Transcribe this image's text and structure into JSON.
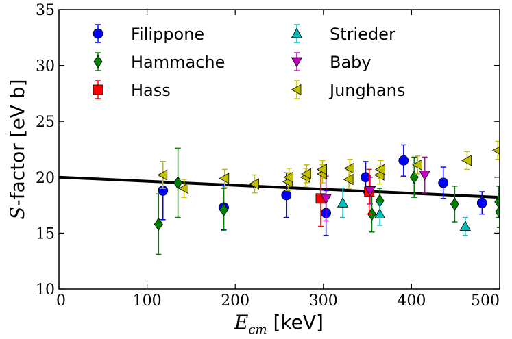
{
  "chart_data": {
    "type": "scatter",
    "xlabel": {
      "symbol": "E",
      "subscript": "cm",
      "unit": " [keV]"
    },
    "ylabel": {
      "symbol": "S",
      "rest": "-factor [eV b]"
    },
    "xlim": [
      0,
      500
    ],
    "ylim": [
      10,
      35
    ],
    "x_ticks": [
      0,
      100,
      200,
      300,
      400,
      500
    ],
    "y_ticks": [
      10,
      15,
      20,
      25,
      30,
      35
    ],
    "grid": false,
    "legend_placement": "top-left, two columns",
    "fit_line": {
      "x": [
        0,
        500
      ],
      "y": [
        20.0,
        18.2
      ],
      "color": "#000000"
    },
    "series": [
      {
        "name": "Filippone",
        "marker": "circle",
        "color": "#0000ff",
        "points": [
          {
            "x": 118,
            "y": 18.8,
            "err": 2.6
          },
          {
            "x": 187,
            "y": 17.3,
            "err": 2.0
          },
          {
            "x": 258,
            "y": 18.4,
            "err": 2.0
          },
          {
            "x": 303,
            "y": 16.8,
            "err": 2.0
          },
          {
            "x": 348,
            "y": 20.0,
            "err": 1.4
          },
          {
            "x": 391,
            "y": 21.5,
            "err": 1.4
          },
          {
            "x": 436,
            "y": 19.5,
            "err": 1.4
          },
          {
            "x": 480,
            "y": 17.7,
            "err": 1.0
          }
        ]
      },
      {
        "name": "Hammache",
        "marker": "diamond",
        "color": "#008000",
        "points": [
          {
            "x": 113,
            "y": 15.8,
            "err": 2.7
          },
          {
            "x": 135,
            "y": 19.5,
            "err": 3.1
          },
          {
            "x": 187,
            "y": 17.1,
            "err": 1.9
          },
          {
            "x": 355,
            "y": 16.7,
            "err": 1.6
          },
          {
            "x": 364,
            "y": 17.9,
            "err": 1.1
          },
          {
            "x": 403,
            "y": 20.0,
            "err": 1.8
          },
          {
            "x": 449,
            "y": 17.6,
            "err": 1.6
          },
          {
            "x": 499,
            "y": 17.8,
            "err": 1.4
          },
          {
            "x": 500,
            "y": 16.9,
            "err": 1.4
          }
        ]
      },
      {
        "name": "Hass",
        "marker": "square",
        "color": "#ff0000",
        "points": [
          {
            "x": 297,
            "y": 18.1,
            "err": 2.5
          },
          {
            "x": 352,
            "y": 18.7,
            "err": 2.0
          }
        ]
      },
      {
        "name": "Strieder",
        "marker": "triangle-up",
        "color": "#00bfbf",
        "points": [
          {
            "x": 322,
            "y": 17.7,
            "err": 1.3
          },
          {
            "x": 364,
            "y": 16.7,
            "err": 1.0
          },
          {
            "x": 461,
            "y": 15.6,
            "err": 0.8
          }
        ]
      },
      {
        "name": "Baby",
        "marker": "triangle-down",
        "color": "#bf00bf",
        "points": [
          {
            "x": 303,
            "y": 18.1,
            "err": 2.0
          },
          {
            "x": 353,
            "y": 18.8,
            "err": 1.2
          },
          {
            "x": 415,
            "y": 20.2,
            "err": 1.6
          }
        ]
      },
      {
        "name": "Junghans",
        "marker": "triangle-left",
        "color": "#bfbf00",
        "points": [
          {
            "x": 118,
            "y": 20.2,
            "err": 1.2
          },
          {
            "x": 142,
            "y": 19.0,
            "err": 0.8
          },
          {
            "x": 188,
            "y": 19.9,
            "err": 0.8
          },
          {
            "x": 222,
            "y": 19.4,
            "err": 0.8
          },
          {
            "x": 260,
            "y": 19.6,
            "err": 0.8
          },
          {
            "x": 261,
            "y": 20.0,
            "err": 0.8
          },
          {
            "x": 280,
            "y": 20.0,
            "err": 0.8
          },
          {
            "x": 281,
            "y": 20.3,
            "err": 0.8
          },
          {
            "x": 299,
            "y": 20.3,
            "err": 0.8
          },
          {
            "x": 299,
            "y": 20.7,
            "err": 0.8
          },
          {
            "x": 329,
            "y": 19.8,
            "err": 0.8
          },
          {
            "x": 330,
            "y": 20.8,
            "err": 0.8
          },
          {
            "x": 364,
            "y": 20.2,
            "err": 0.8
          },
          {
            "x": 365,
            "y": 20.7,
            "err": 0.8
          },
          {
            "x": 407,
            "y": 21.1,
            "err": 0.8
          },
          {
            "x": 463,
            "y": 21.5,
            "err": 0.8
          },
          {
            "x": 498,
            "y": 22.4,
            "err": 0.8
          }
        ]
      }
    ]
  }
}
